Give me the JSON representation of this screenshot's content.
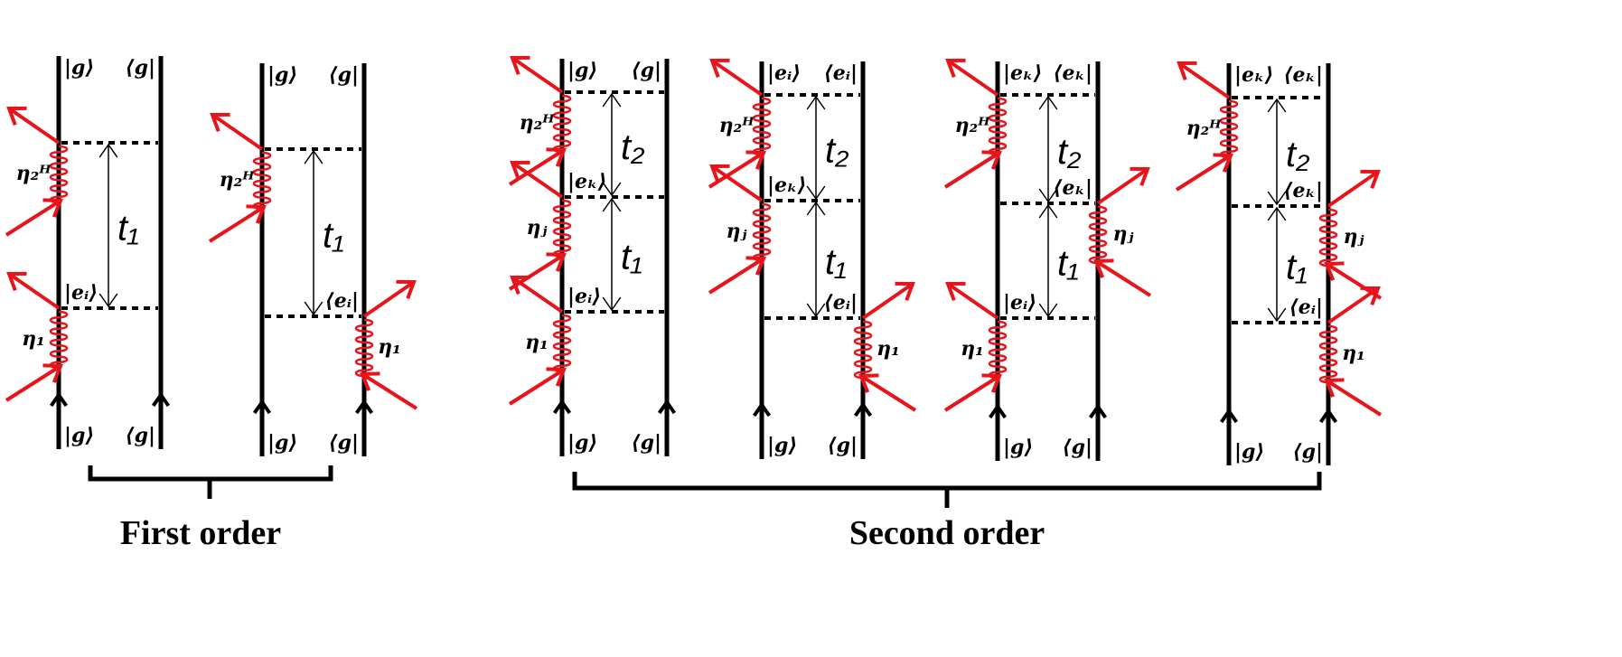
{
  "colors": {
    "line": "#000000",
    "photon": "#e8141b"
  },
  "captions": {
    "first": "First order",
    "second": "Second order"
  },
  "diagrams": [
    {
      "group": "first",
      "top": [
        "|g⟩",
        "⟨g|"
      ],
      "bottom": [
        "|g⟩",
        "⟨g|"
      ],
      "mid": [
        {
          "text": "|eᵢ⟩",
          "side": "left",
          "level": 1
        }
      ],
      "interactions": [
        {
          "label": "η₂ᴴ",
          "side": "left"
        },
        {
          "label": "η₁",
          "side": "left"
        }
      ],
      "intervals": [
        "t₁"
      ]
    },
    {
      "group": "first",
      "top": [
        "|g⟩",
        "⟨g|"
      ],
      "bottom": [
        "|g⟩",
        "⟨g|"
      ],
      "mid": [
        {
          "text": "⟨eᵢ|",
          "side": "right",
          "level": 1
        }
      ],
      "interactions": [
        {
          "label": "η₂ᴴ",
          "side": "left"
        },
        {
          "label": "η₁",
          "side": "right"
        }
      ],
      "intervals": [
        "t₁"
      ]
    },
    {
      "group": "second",
      "top": [
        "|g⟩",
        "⟨g|"
      ],
      "bottom": [
        "|g⟩",
        "⟨g|"
      ],
      "mid": [
        {
          "text": "|eₖ⟩",
          "side": "left",
          "level": 1
        },
        {
          "text": "|eᵢ⟩",
          "side": "left",
          "level": 2
        }
      ],
      "interactions": [
        {
          "label": "η₂ᴴ",
          "side": "left"
        },
        {
          "label": "ηⱼ",
          "side": "left"
        },
        {
          "label": "η₁",
          "side": "left"
        }
      ],
      "intervals": [
        "t₂",
        "t₁"
      ]
    },
    {
      "group": "second",
      "top": [
        "|eᵢ⟩",
        "⟨eᵢ|"
      ],
      "bottom": [
        "|g⟩",
        "⟨g|"
      ],
      "mid": [
        {
          "text": "|eₖ⟩",
          "side": "left",
          "level": 1
        },
        {
          "text": "⟨eᵢ|",
          "side": "right",
          "level": 2
        }
      ],
      "interactions": [
        {
          "label": "η₂ᴴ",
          "side": "left"
        },
        {
          "label": "ηⱼ",
          "side": "left"
        },
        {
          "label": "η₁",
          "side": "right"
        }
      ],
      "intervals": [
        "t₂",
        "t₁"
      ]
    },
    {
      "group": "second",
      "top": [
        "|eₖ⟩",
        "⟨eₖ|"
      ],
      "bottom": [
        "|g⟩",
        "⟨g|"
      ],
      "mid": [
        {
          "text": "⟨eₖ|",
          "side": "right",
          "level": 1
        },
        {
          "text": "|eᵢ⟩",
          "side": "left",
          "level": 2
        }
      ],
      "interactions": [
        {
          "label": "η₂ᴴ",
          "side": "left"
        },
        {
          "label": "ηⱼ",
          "side": "right"
        },
        {
          "label": "η₁",
          "side": "left"
        }
      ],
      "intervals": [
        "t₂",
        "t₁"
      ]
    },
    {
      "group": "second",
      "top": [
        "|eₖ⟩",
        "⟨eₖ|"
      ],
      "bottom": [
        "|g⟩",
        "⟨g|"
      ],
      "mid": [
        {
          "text": "⟨eₖ|",
          "side": "right",
          "level": 1
        },
        {
          "text": "⟨eᵢ|",
          "side": "right",
          "level": 2
        }
      ],
      "interactions": [
        {
          "label": "η₂ᴴ",
          "side": "left"
        },
        {
          "label": "ηⱼ",
          "side": "right"
        },
        {
          "label": "η₁",
          "side": "right"
        }
      ],
      "intervals": [
        "t₂",
        "t₁"
      ]
    }
  ]
}
